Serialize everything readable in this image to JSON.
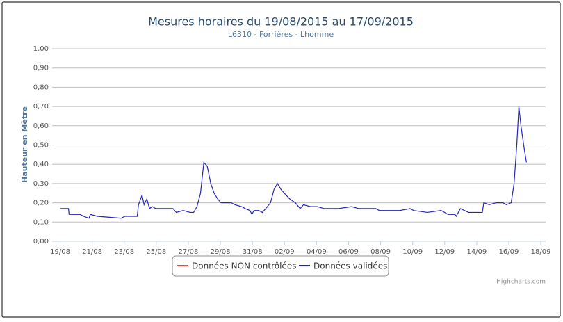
{
  "chart_data": {
    "type": "line",
    "title": "Mesures horaires du 19/08/2015 au 17/09/2015",
    "subtitle": "L6310 - Forrières - Lhomme",
    "y_label": "Hauteur en Mètre",
    "credits": "Highcharts.com",
    "xlim": [
      -0.5,
      30.3
    ],
    "xticks": [
      {
        "value": 0,
        "label": "19/08"
      },
      {
        "value": 2,
        "label": "21/08"
      },
      {
        "value": 4,
        "label": "23/08"
      },
      {
        "value": 6,
        "label": "25/08"
      },
      {
        "value": 8,
        "label": "27/08"
      },
      {
        "value": 10,
        "label": "29/08"
      },
      {
        "value": 12,
        "label": "31/08"
      },
      {
        "value": 14,
        "label": "02/09"
      },
      {
        "value": 16,
        "label": "04/09"
      },
      {
        "value": 18,
        "label": "06/09"
      },
      {
        "value": 20,
        "label": "08/09"
      },
      {
        "value": 22,
        "label": "10/09"
      },
      {
        "value": 24,
        "label": "12/09"
      },
      {
        "value": 26,
        "label": "14/09"
      },
      {
        "value": 28,
        "label": "16/09"
      },
      {
        "value": 30,
        "label": "18/09"
      }
    ],
    "ylim": [
      0,
      1
    ],
    "yticks": [
      {
        "value": 0,
        "label": "0,00"
      },
      {
        "value": 0.1,
        "label": "0,10"
      },
      {
        "value": 0.2,
        "label": "0,20"
      },
      {
        "value": 0.3,
        "label": "0,30"
      },
      {
        "value": 0.4,
        "label": "0,40"
      },
      {
        "value": 0.5,
        "label": "0,50"
      },
      {
        "value": 0.6,
        "label": "0,60"
      },
      {
        "value": 0.7,
        "label": "0,70"
      },
      {
        "value": 0.8,
        "label": "0,80"
      },
      {
        "value": 0.9,
        "label": "0,90"
      },
      {
        "value": 1,
        "label": "1,00"
      }
    ],
    "grid": true,
    "series": [
      {
        "name": "Données NON contrôlées",
        "color": "#e8453c",
        "x": [],
        "values": []
      },
      {
        "name": "Données validées",
        "color": "#2525b8",
        "x": [
          0,
          0.52,
          0.56,
          1.24,
          1.46,
          1.8,
          1.89,
          2.32,
          3.82,
          4.03,
          4.81,
          4.89,
          5.11,
          5.24,
          5.41,
          5.58,
          5.75,
          5.97,
          7.04,
          7.25,
          7.68,
          8.11,
          8.33,
          8.54,
          8.76,
          8.97,
          9.18,
          9.4,
          9.61,
          9.83,
          10.04,
          10.69,
          10.9,
          11.33,
          11.55,
          11.85,
          11.97,
          12.1,
          12.4,
          12.62,
          12.83,
          13.13,
          13.35,
          13.56,
          13.78,
          13.99,
          14.33,
          14.68,
          14.98,
          15.19,
          15.62,
          16.05,
          16.48,
          17.34,
          18.2,
          18.63,
          19.7,
          19.91,
          21.2,
          21.85,
          22.06,
          22.92,
          23.78,
          24.21,
          24.64,
          24.72,
          24.98,
          25.49,
          26.35,
          26.44,
          26.78,
          27.21,
          27.64,
          27.85,
          28.15,
          28.33,
          28.5,
          28.63,
          28.76,
          28.93,
          29.1
        ],
        "values": [
          0.17,
          0.17,
          0.14,
          0.14,
          0.13,
          0.12,
          0.14,
          0.13,
          0.12,
          0.13,
          0.13,
          0.19,
          0.24,
          0.19,
          0.22,
          0.17,
          0.18,
          0.17,
          0.17,
          0.15,
          0.16,
          0.15,
          0.15,
          0.18,
          0.25,
          0.41,
          0.39,
          0.3,
          0.25,
          0.22,
          0.2,
          0.2,
          0.19,
          0.18,
          0.17,
          0.16,
          0.14,
          0.16,
          0.16,
          0.15,
          0.17,
          0.2,
          0.27,
          0.3,
          0.27,
          0.25,
          0.22,
          0.2,
          0.17,
          0.19,
          0.18,
          0.18,
          0.17,
          0.17,
          0.18,
          0.17,
          0.17,
          0.16,
          0.16,
          0.17,
          0.16,
          0.15,
          0.16,
          0.14,
          0.14,
          0.13,
          0.17,
          0.15,
          0.15,
          0.2,
          0.19,
          0.2,
          0.2,
          0.19,
          0.2,
          0.3,
          0.5,
          0.7,
          0.6,
          0.5,
          0.41
        ]
      }
    ]
  }
}
